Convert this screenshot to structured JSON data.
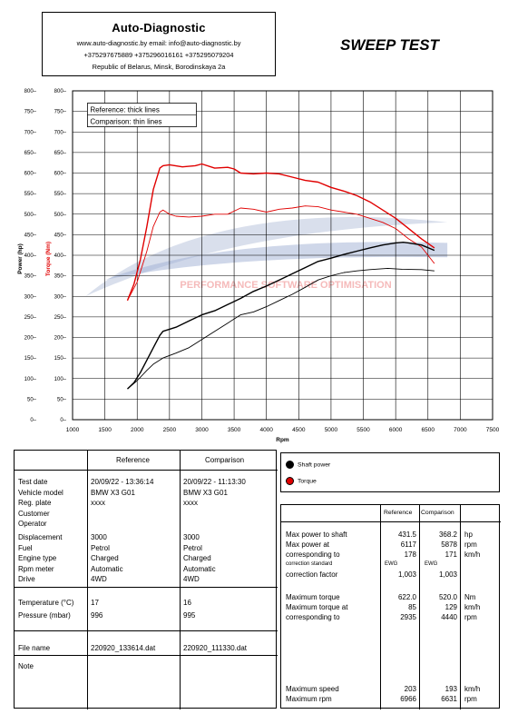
{
  "header": {
    "company": "Auto-Diagnostic",
    "contacts": "www.auto-diagnostic.by     email: info@auto-diagnostic.by",
    "phones": "+375297675889  +375296016161  +375295079204",
    "address": "Republic of Belarus, Minsk, Borodinskaya 2a",
    "title": "SWEEP TEST"
  },
  "chart_data": {
    "type": "line",
    "xlabel": "Rpm",
    "ylabel_power": "Power (hp)",
    "ylabel_torque": "Torque (Nm)",
    "xlim": [
      1000,
      7500
    ],
    "ylim": [
      0,
      800
    ],
    "x_ticks": [
      "1000",
      "1500",
      "2000",
      "2500",
      "3000",
      "3500",
      "4000",
      "4500",
      "5000",
      "5500",
      "6000",
      "6500",
      "7000",
      "7500"
    ],
    "y_ticks_left": [
      "0",
      "50",
      "100",
      "150",
      "200",
      "250",
      "300",
      "350",
      "400",
      "450",
      "500",
      "550",
      "600",
      "650",
      "700",
      "750",
      "800"
    ],
    "y_ticks_right": [
      "0",
      "50",
      "100",
      "150",
      "200",
      "250",
      "300",
      "350",
      "400",
      "450",
      "500",
      "550",
      "600",
      "650",
      "700",
      "750",
      "800"
    ],
    "grid": true,
    "legend_lines": [
      "Reference: thick lines",
      "Comparison: thin lines"
    ],
    "watermark": "PERFORMANCE SOFTWARE OPTIMISATION",
    "colors": {
      "power": "#000000",
      "torque": "#e00000"
    },
    "series": [
      {
        "name": "Reference torque",
        "style": "thick",
        "color": "#e00000",
        "x": [
          1850,
          1950,
          2050,
          2150,
          2250,
          2350,
          2400,
          2500,
          2700,
          2900,
          3000,
          3200,
          3400,
          3500,
          3600,
          3800,
          4000,
          4200,
          4400,
          4600,
          4800,
          5000,
          5200,
          5400,
          5600,
          5800,
          6000,
          6200,
          6400,
          6600
        ],
        "y": [
          290,
          330,
          390,
          470,
          560,
          612,
          618,
          620,
          615,
          618,
          622,
          612,
          614,
          610,
          600,
          598,
          600,
          598,
          590,
          582,
          578,
          565,
          556,
          545,
          530,
          510,
          490,
          465,
          440,
          418
        ]
      },
      {
        "name": "Comparison torque",
        "style": "thin",
        "color": "#e00000",
        "x": [
          1850,
          2000,
          2150,
          2250,
          2350,
          2400,
          2500,
          2600,
          2800,
          3000,
          3200,
          3400,
          3600,
          3800,
          4000,
          4200,
          4400,
          4600,
          4800,
          5000,
          5200,
          5400,
          5600,
          5800,
          6000,
          6200,
          6400,
          6600
        ],
        "y": [
          290,
          335,
          410,
          470,
          505,
          510,
          500,
          495,
          493,
          495,
          500,
          500,
          515,
          512,
          505,
          512,
          515,
          520,
          518,
          510,
          505,
          500,
          490,
          480,
          465,
          440,
          420,
          380
        ]
      },
      {
        "name": "Reference power",
        "style": "thick",
        "color": "#000000",
        "x": [
          1850,
          1950,
          2050,
          2150,
          2250,
          2350,
          2400,
          2600,
          2800,
          3000,
          3200,
          3400,
          3600,
          3800,
          4000,
          4200,
          4400,
          4600,
          4800,
          5000,
          5200,
          5400,
          5600,
          5800,
          6000,
          6117,
          6200,
          6400,
          6600
        ],
        "y": [
          75,
          90,
          115,
          145,
          175,
          205,
          215,
          225,
          240,
          255,
          265,
          280,
          295,
          312,
          325,
          340,
          355,
          370,
          385,
          393,
          402,
          410,
          418,
          425,
          430,
          431.5,
          430,
          425,
          412
        ]
      },
      {
        "name": "Comparison power",
        "style": "thin",
        "color": "#000000",
        "x": [
          1850,
          2000,
          2150,
          2250,
          2400,
          2600,
          2800,
          3000,
          3200,
          3400,
          3600,
          3800,
          4000,
          4200,
          4400,
          4600,
          4800,
          5000,
          5200,
          5400,
          5600,
          5878,
          6100,
          6400,
          6600
        ],
        "y": [
          75,
          95,
          120,
          135,
          150,
          162,
          175,
          195,
          215,
          235,
          255,
          262,
          275,
          290,
          305,
          322,
          340,
          350,
          358,
          362,
          365,
          368.2,
          366,
          365,
          362
        ]
      }
    ]
  },
  "legend": {
    "shaft_power": "Shaft power",
    "torque": "Torque",
    "power_color": "#000000",
    "torque_color": "#e00000"
  },
  "info": {
    "col_reference": "Reference",
    "col_comparison": "Comparison",
    "labels1": [
      "Test date",
      "Vehicle model",
      "Reg. plate",
      "Customer",
      "Operator"
    ],
    "ref1": [
      "20/09/22 - 13:36:14",
      "BMW X3 G01",
      "xxxx",
      "",
      ""
    ],
    "cmp1": [
      "20/09/22 - 11:13:30",
      "BMW X3 G01",
      "xxxx",
      "",
      ""
    ],
    "labels2": [
      "Displacement",
      "Fuel",
      "Engine type",
      "Rpm meter",
      "Drive"
    ],
    "ref2": [
      "3000",
      "Petrol",
      "Charged",
      "Automatic",
      "4WD"
    ],
    "cmp2": [
      "3000",
      "Petrol",
      "Charged",
      "Automatic",
      "4WD"
    ],
    "labels3": [
      "Temperature (°C)",
      "Pressure (mbar)"
    ],
    "ref3": [
      "17",
      "996"
    ],
    "cmp3": [
      "16",
      "995"
    ],
    "file_label": "File name",
    "file_ref": "220920_133614.dat",
    "file_cmp": "220920_111330.dat",
    "note_label": "Note"
  },
  "results": {
    "col_reference": "Reference",
    "col_comparison": "Comparison",
    "max_power_label": "Max power to shaft",
    "max_power_ref": "431.5",
    "max_power_cmp": "368.2",
    "max_power_unit": "hp",
    "max_power_at_label": "Max power at",
    "max_power_at_ref": "6117",
    "max_power_at_cmp": "5878",
    "max_power_at_unit": "rpm",
    "corr_to_label": "corresponding to",
    "corr_to_ref": "178",
    "corr_to_cmp": "171",
    "corr_to_unit": "km/h",
    "corr_std_label": "correction standard",
    "corr_std_ref": "EWG",
    "corr_std_cmp": "EWG",
    "corr_factor_label": "correction factor",
    "corr_factor_ref": "1,003",
    "corr_factor_cmp": "1,003",
    "max_torque_label": "Maximum torque",
    "max_torque_ref": "622.0",
    "max_torque_cmp": "520.0",
    "max_torque_unit": "Nm",
    "max_torque_at_label": "Maximum torque at",
    "max_torque_at_ref": "85",
    "max_torque_at_cmp": "129",
    "max_torque_at_unit": "km/h",
    "torque_corr_label": "corresponding to",
    "torque_corr_ref": "2935",
    "torque_corr_cmp": "4440",
    "torque_corr_unit": "rpm",
    "max_speed_label": "Maximum speed",
    "max_speed_ref": "203",
    "max_speed_cmp": "193",
    "max_speed_unit": "km/h",
    "max_rpm_label": "Maximum rpm",
    "max_rpm_ref": "6966",
    "max_rpm_cmp": "6631",
    "max_rpm_unit": "rpm"
  }
}
